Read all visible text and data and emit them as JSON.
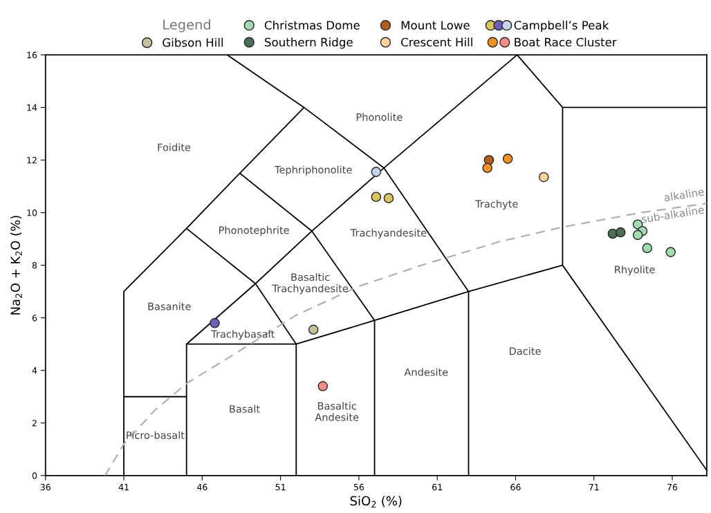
{
  "chart_data": {
    "type": "scatter",
    "xlabel": "SiO$_{2}$ (%)",
    "ylabel": "Na$_{2}$O + K$_{2}$O (%)",
    "legend_title": "Legend",
    "legend": "top",
    "marker": "circle",
    "grid": false,
    "xlim": [
      36,
      78.2
    ],
    "ylim": [
      0,
      16
    ],
    "xticks": [
      36,
      41,
      46,
      51,
      56,
      61,
      66,
      71,
      76
    ],
    "yticks": [
      0,
      2,
      4,
      6,
      8,
      10,
      12,
      14,
      16
    ],
    "series": [
      {
        "name": "Christmas Dome",
        "colors": [
          "#a3dbb0",
          "#a3dbb0",
          "#a3dbb0",
          "#a3dbb0",
          "#a3dbb0"
        ],
        "x": [
          73.8,
          74.1,
          73.8,
          74.4,
          75.9
        ],
        "values": [
          9.55,
          9.3,
          9.15,
          8.65,
          8.5
        ]
      },
      {
        "name": "Mount Lowe",
        "colors": [
          "#b55e1c"
        ],
        "x": [
          64.3
        ],
        "values": [
          12.0
        ]
      },
      {
        "name": "Campbell’s Peak",
        "colors": [
          "#d8c55e",
          "#d8c55e",
          "#6f5fb8",
          "#c7d5ec"
        ],
        "x": [
          57.1,
          57.9,
          46.8,
          57.1
        ],
        "values": [
          10.6,
          10.55,
          5.8,
          11.55
        ]
      },
      {
        "name": "Gibson Hill",
        "colors": [
          "#c6c39c"
        ],
        "x": [
          53.1
        ],
        "values": [
          5.55
        ]
      },
      {
        "name": "Southern Ridge",
        "colors": [
          "#4d6e57",
          "#4d6e57"
        ],
        "x": [
          72.2,
          72.7
        ],
        "values": [
          9.2,
          9.25
        ]
      },
      {
        "name": "Crescent Hill",
        "colors": [
          "#fdd59c"
        ],
        "x": [
          67.8
        ],
        "values": [
          11.35
        ]
      },
      {
        "name": "Boat Race Cluster",
        "colors": [
          "#f4921f",
          "#f4921f",
          "#f28c84"
        ],
        "x": [
          64.2,
          65.5,
          53.7
        ],
        "values": [
          11.7,
          12.05,
          3.4
        ]
      },
      {
        "type": "line",
        "marker": "none",
        "color": "#b0b0b0",
        "line_style": "dashed",
        "x": [
          39.8,
          41,
          43,
          45,
          48,
          52,
          56,
          60,
          65,
          69,
          74,
          78.2
        ],
        "values": [
          0,
          1.2,
          2.5,
          3.5,
          4.6,
          6.1,
          7.2,
          8.0,
          8.9,
          9.45,
          10.0,
          10.35
        ]
      },
      {
        "type": "line",
        "marker": "none",
        "color": "#000000",
        "x": [
          41,
          41,
          45,
          48.4,
          52.5,
          47.6,
          null,
          41,
          45,
          null,
          45,
          45,
          49.4,
          53,
          57.6,
          66.1,
          69,
          78.2,
          null,
          45,
          52,
          57,
          63,
          69,
          69,
          null,
          69,
          78.2,
          null,
          52,
          52,
          49.4,
          null,
          57,
          57,
          53,
          null,
          63,
          63,
          57.6,
          null,
          45,
          49.4,
          null,
          48.4,
          53,
          null,
          52.5,
          57.6
        ],
        "values": [
          0,
          7,
          9.4,
          11.5,
          14,
          16,
          null,
          3,
          3,
          null,
          0,
          5,
          7.3,
          9.3,
          11.7,
          16,
          14,
          14,
          null,
          5,
          5,
          5.9,
          7,
          8,
          14,
          null,
          8,
          0.2,
          null,
          0,
          5,
          7.3,
          null,
          0,
          5.9,
          9.3,
          null,
          0,
          7,
          11.7,
          null,
          9.4,
          7.3,
          null,
          11.5,
          9.3,
          null,
          14,
          11.7
        ]
      }
    ],
    "annotations": [
      "Foidite",
      "Phonolite",
      "Tephriphonolite",
      "Phonotephrite",
      "Trachyte",
      "Trachyandesite",
      "Basaltic\nTrachyandesite",
      "Basanite",
      "Trachybasalt",
      "Rhyolite",
      "Dacite",
      "Andesite",
      "Basaltic\nAndesite",
      "Basalt",
      "Picro-basalt",
      "alkaline",
      "sub-alkaline"
    ]
  }
}
